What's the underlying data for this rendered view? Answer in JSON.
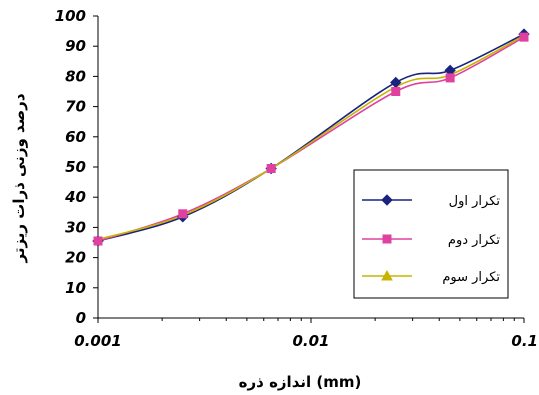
{
  "chart_data": {
    "type": "line",
    "x_scale": "log",
    "xlim": [
      0.001,
      0.1
    ],
    "ylim": [
      0,
      100
    ],
    "grid": false,
    "legend_position": "right-middle",
    "xlabel": "اندازه ذره (mm)",
    "ylabel": "درصد وزنی ذرات ریزتر",
    "x_ticks": [
      "0.001",
      "0.01",
      "0.1"
    ],
    "y_ticks": [
      "0",
      "10",
      "20",
      "30",
      "40",
      "50",
      "60",
      "70",
      "80",
      "90",
      "100"
    ],
    "series": [
      {
        "name": "تکرار اول",
        "color": "#1a237e",
        "marker": "diamond",
        "x": [
          0.001,
          0.0025,
          0.0065,
          0.025,
          0.045,
          0.1
        ],
        "y": [
          25.5,
          33.5,
          49.5,
          78,
          82,
          94
        ]
      },
      {
        "name": "تکرار دوم",
        "color": "#e040a0",
        "marker": "square",
        "x": [
          0.001,
          0.0025,
          0.0065,
          0.025,
          0.045,
          0.1
        ],
        "y": [
          25.5,
          34.5,
          49.5,
          75,
          79.5,
          93
        ]
      },
      {
        "name": "تکرار سوم",
        "color": "#c8b400",
        "marker": "triangle",
        "x": [
          0.001,
          0.0025,
          0.0065,
          0.025,
          0.045,
          0.1
        ],
        "y": [
          26,
          34,
          49.5,
          76.5,
          80.5,
          93.5
        ]
      }
    ]
  }
}
